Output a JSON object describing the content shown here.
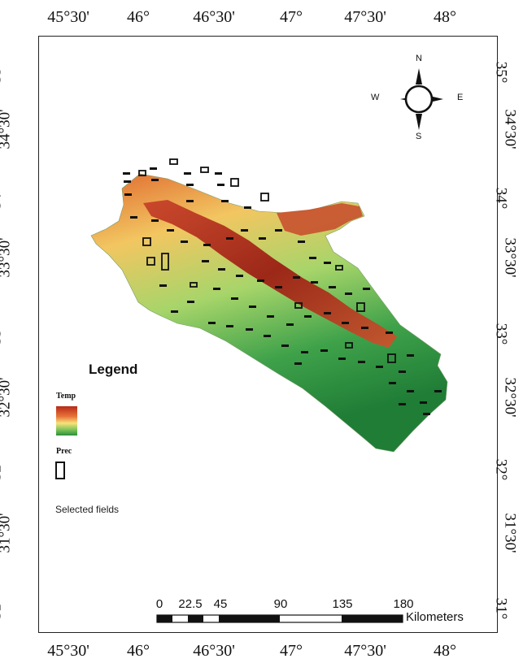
{
  "map": {
    "top_ticks": [
      "45°30'",
      "46°",
      "46°30'",
      "47°",
      "47°30'",
      "48°"
    ],
    "bottom_ticks": [
      "45°30'",
      "46°",
      "46°30'",
      "47°",
      "47°30'",
      "48°"
    ],
    "lat_ticks": [
      "35°",
      "34°30'",
      "34°",
      "33°30'",
      "33°",
      "32°30'",
      "32°",
      "31°30'",
      "31°"
    ]
  },
  "compass": {
    "n": "N",
    "s": "S",
    "e": "E",
    "w": "W"
  },
  "legend": {
    "title": "Legend",
    "temp_label": "Temp",
    "prec_label": "Prec",
    "selected_label": "Selected fields"
  },
  "scale": {
    "labels": [
      "0",
      "22.5",
      "45",
      "90",
      "135",
      "180"
    ],
    "unit": "Kilometers"
  },
  "colors": {
    "high": "#9e1f12",
    "mid_high": "#e07a3a",
    "mid": "#f4e07c",
    "low": "#7cc25a",
    "lowest": "#238a3a"
  }
}
